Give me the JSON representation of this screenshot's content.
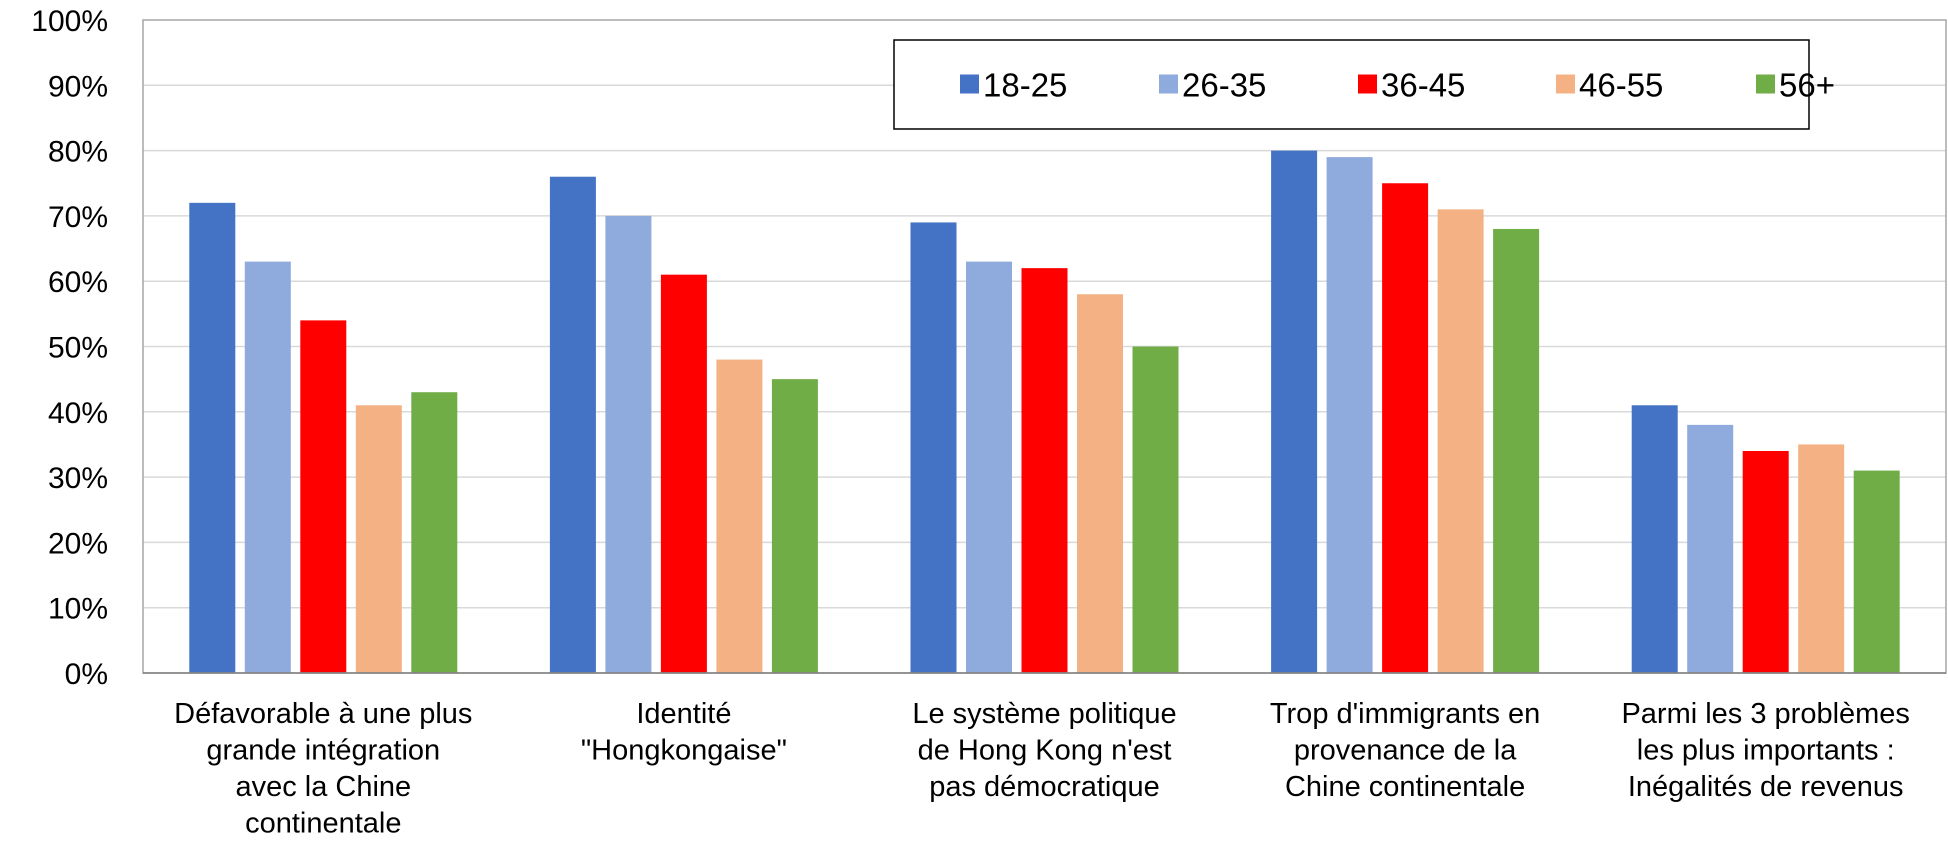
{
  "chart_data": {
    "type": "bar",
    "title": "",
    "xlabel": "",
    "ylabel": "",
    "ylim": [
      0,
      1
    ],
    "y_ticks": [
      "0%",
      "10%",
      "20%",
      "30%",
      "40%",
      "50%",
      "60%",
      "70%",
      "80%",
      "90%",
      "100%"
    ],
    "grid": true,
    "legend_position": "top-right",
    "categories": [
      [
        "Défavorable à une plus",
        "grande intégration",
        "avec la Chine",
        "continentale"
      ],
      [
        "Identité",
        "\"Hongkongaise\""
      ],
      [
        "Le système politique",
        "de Hong Kong n'est",
        "pas démocratique"
      ],
      [
        "Trop d'immigrants en",
        "provenance de la",
        "Chine continentale"
      ],
      [
        "Parmi les 3 problèmes",
        "les plus importants :",
        "Inégalités de revenus"
      ]
    ],
    "series": [
      {
        "name": "18-25",
        "color": "#4472C4",
        "values": [
          0.72,
          0.76,
          0.69,
          0.8,
          0.41
        ]
      },
      {
        "name": "26-35",
        "color": "#8FAADC",
        "values": [
          0.63,
          0.7,
          0.63,
          0.79,
          0.38
        ]
      },
      {
        "name": "36-45",
        "color": "#FF0000",
        "values": [
          0.54,
          0.61,
          0.62,
          0.75,
          0.34
        ]
      },
      {
        "name": "46-55",
        "color": "#F4B183",
        "values": [
          0.41,
          0.48,
          0.58,
          0.71,
          0.35
        ]
      },
      {
        "name": "56+",
        "color": "#70AD47",
        "values": [
          0.43,
          0.45,
          0.5,
          0.68,
          0.31
        ]
      }
    ]
  }
}
